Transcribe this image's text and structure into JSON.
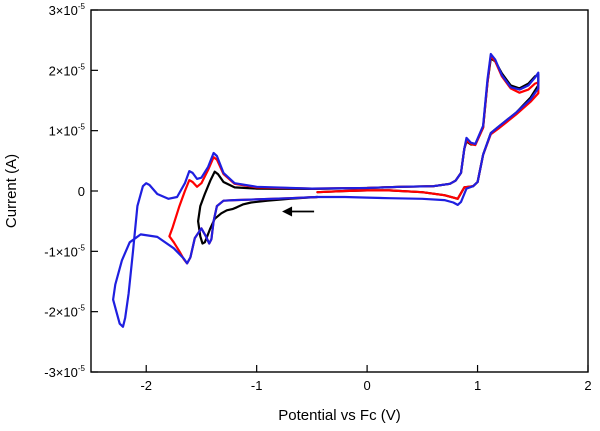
{
  "chart_data": {
    "type": "line",
    "title": "",
    "xlabel": "Potential vs Fc (V)",
    "ylabel": "Current (A)",
    "xlim": [
      -2.5,
      2.0
    ],
    "ylim": [
      -3e-05,
      3e-05
    ],
    "x_ticks": [
      {
        "value": -2,
        "label": "-2"
      },
      {
        "value": -1,
        "label": "-1"
      },
      {
        "value": 0,
        "label": "0"
      },
      {
        "value": 1,
        "label": "1"
      },
      {
        "value": 2,
        "label": "2"
      }
    ],
    "y_ticks": [
      {
        "value": 3e-05,
        "mant": "3×10",
        "exp": "-5"
      },
      {
        "value": 2e-05,
        "mant": "2×10",
        "exp": "-5"
      },
      {
        "value": 1e-05,
        "mant": "1×10",
        "exp": "-5"
      },
      {
        "value": 0,
        "mant": "0",
        "exp": ""
      },
      {
        "value": -1e-05,
        "mant": "-1×10",
        "exp": "-5"
      },
      {
        "value": -2e-05,
        "mant": "-2×10",
        "exp": "-5"
      },
      {
        "value": -3e-05,
        "mant": "-3×10",
        "exp": "-5"
      }
    ],
    "grid": false,
    "legend": "none",
    "annotation": {
      "type": "arrow",
      "direction": "left",
      "x_from": -0.48,
      "x_to": -0.77,
      "y": -3.4e-06
    },
    "series": [
      {
        "color": "#000000",
        "points": [
          [
            -0.45,
            -1e-06
          ],
          [
            -0.55,
            -1.1e-06
          ],
          [
            -0.7,
            -1.3e-06
          ],
          [
            -0.9,
            -1.6e-06
          ],
          [
            -1.05,
            -1.9e-06
          ],
          [
            -1.12,
            -2.2e-06
          ],
          [
            -1.18,
            -2.7e-06
          ],
          [
            -1.22,
            -3e-06
          ],
          [
            -1.27,
            -3.2e-06
          ],
          [
            -1.32,
            -3.7e-06
          ],
          [
            -1.38,
            -4.6e-06
          ],
          [
            -1.42,
            -6.2e-06
          ],
          [
            -1.45,
            -7.6e-06
          ],
          [
            -1.47,
            -8.5e-06
          ],
          [
            -1.49,
            -8.7e-06
          ],
          [
            -1.51,
            -7.5e-06
          ],
          [
            -1.53,
            -5e-06
          ],
          [
            -1.51,
            -2.5e-06
          ],
          [
            -1.47,
            -5e-07
          ],
          [
            -1.42,
            1.7e-06
          ],
          [
            -1.38,
            3.2e-06
          ],
          [
            -1.35,
            2.8e-06
          ],
          [
            -1.3,
            1.5e-06
          ],
          [
            -1.2,
            6e-07
          ],
          [
            -1.0,
            4e-07
          ],
          [
            -0.5,
            3.5e-07
          ],
          [
            0.0,
            5e-07
          ],
          [
            0.3,
            7e-07
          ],
          [
            0.6,
            8e-07
          ],
          [
            0.75,
            1.2e-06
          ],
          [
            0.8,
            1.7e-06
          ],
          [
            0.85,
            3e-06
          ],
          [
            0.88,
            7e-06
          ],
          [
            0.9,
            8.2e-06
          ],
          [
            0.94,
            7.7e-06
          ],
          [
            0.98,
            7.7e-06
          ],
          [
            1.05,
            1.05e-05
          ],
          [
            1.09,
            1.8e-05
          ],
          [
            1.12,
            2.2e-05
          ],
          [
            1.16,
            2.15e-05
          ],
          [
            1.22,
            1.95e-05
          ],
          [
            1.3,
            1.75e-05
          ],
          [
            1.38,
            1.7e-05
          ],
          [
            1.46,
            1.78e-05
          ],
          [
            1.52,
            1.9e-05
          ],
          [
            1.55,
            1.93e-05
          ],
          [
            1.55,
            1.75e-05
          ],
          [
            1.48,
            1.55e-05
          ],
          [
            1.35,
            1.3e-05
          ],
          [
            1.2,
            1.08e-05
          ],
          [
            1.12,
            9.6e-06
          ],
          [
            1.05,
            6e-06
          ],
          [
            1.0,
            1.5e-06
          ],
          [
            0.96,
            8e-07
          ],
          [
            0.88,
            6e-07
          ],
          [
            0.82,
            -1.3e-06
          ],
          [
            0.78,
            -1.1e-06
          ],
          [
            0.7,
            -7e-07
          ],
          [
            0.5,
            -2e-07
          ],
          [
            0.2,
            1e-07
          ],
          [
            0.0,
            1e-07
          ],
          [
            -0.2,
            0.0
          ],
          [
            -0.45,
            -2e-07
          ]
        ]
      },
      {
        "color": "#ff0000",
        "points": [
          [
            -0.45,
            -1e-06
          ],
          [
            -0.7,
            -1.2e-06
          ],
          [
            -1.0,
            -1.4e-06
          ],
          [
            -1.2,
            -1.5e-06
          ],
          [
            -1.3,
            -1.6e-06
          ],
          [
            -1.36,
            -2.5e-06
          ],
          [
            -1.39,
            -5e-06
          ],
          [
            -1.41,
            -8e-06
          ],
          [
            -1.43,
            -8.7e-06
          ],
          [
            -1.46,
            -7.5e-06
          ],
          [
            -1.5,
            -6.2e-06
          ],
          [
            -1.56,
            -7.8e-06
          ],
          [
            -1.6,
            -1.1e-05
          ],
          [
            -1.63,
            -1.2e-05
          ],
          [
            -1.66,
            -1.13e-05
          ],
          [
            -1.7,
            -1e-05
          ],
          [
            -1.75,
            -8.5e-06
          ],
          [
            -1.79,
            -7.5e-06
          ],
          [
            -1.76,
            -6e-06
          ],
          [
            -1.7,
            -2.5e-06
          ],
          [
            -1.65,
            0.0
          ],
          [
            -1.61,
            1.8e-06
          ],
          [
            -1.58,
            1.5e-06
          ],
          [
            -1.54,
            7e-07
          ],
          [
            -1.5,
            1.3e-06
          ],
          [
            -1.44,
            3.5e-06
          ],
          [
            -1.39,
            5.6e-06
          ],
          [
            -1.36,
            5.2e-06
          ],
          [
            -1.3,
            2.8e-06
          ],
          [
            -1.2,
            1.2e-06
          ],
          [
            -1.0,
            6e-07
          ],
          [
            -0.5,
            4e-07
          ],
          [
            0.0,
            5e-07
          ],
          [
            0.3,
            7e-07
          ],
          [
            0.6,
            8e-07
          ],
          [
            0.75,
            1.2e-06
          ],
          [
            0.8,
            1.7e-06
          ],
          [
            0.85,
            3e-06
          ],
          [
            0.88,
            7e-06
          ],
          [
            0.9,
            8.4e-06
          ],
          [
            0.94,
            7.8e-06
          ],
          [
            0.98,
            7.6e-06
          ],
          [
            1.05,
            1.05e-05
          ],
          [
            1.09,
            1.8e-05
          ],
          [
            1.12,
            2.24e-05
          ],
          [
            1.16,
            2.15e-05
          ],
          [
            1.22,
            1.9e-05
          ],
          [
            1.3,
            1.7e-05
          ],
          [
            1.38,
            1.63e-05
          ],
          [
            1.46,
            1.68e-05
          ],
          [
            1.52,
            1.78e-05
          ],
          [
            1.55,
            1.8e-05
          ],
          [
            1.55,
            1.62e-05
          ],
          [
            1.48,
            1.48e-05
          ],
          [
            1.35,
            1.27e-05
          ],
          [
            1.2,
            1.05e-05
          ],
          [
            1.12,
            9.4e-06
          ],
          [
            1.05,
            6e-06
          ],
          [
            1.0,
            1.5e-06
          ],
          [
            0.96,
            8e-07
          ],
          [
            0.88,
            6e-07
          ],
          [
            0.82,
            -1.3e-06
          ],
          [
            0.78,
            -1.1e-06
          ],
          [
            0.7,
            -7e-07
          ],
          [
            0.5,
            -2e-07
          ],
          [
            0.2,
            1e-07
          ],
          [
            0.0,
            1e-07
          ],
          [
            -0.2,
            0.0
          ],
          [
            -0.45,
            -2e-07
          ]
        ]
      },
      {
        "color": "#1f1fe0",
        "points": [
          [
            -0.45,
            -1e-06
          ],
          [
            -0.7,
            -1.2e-06
          ],
          [
            -1.0,
            -1.4e-06
          ],
          [
            -1.2,
            -1.5e-06
          ],
          [
            -1.3,
            -1.6e-06
          ],
          [
            -1.36,
            -2.5e-06
          ],
          [
            -1.39,
            -5e-06
          ],
          [
            -1.41,
            -8e-06
          ],
          [
            -1.43,
            -8.7e-06
          ],
          [
            -1.46,
            -7.5e-06
          ],
          [
            -1.5,
            -6.2e-06
          ],
          [
            -1.56,
            -7.8e-06
          ],
          [
            -1.6,
            -1.1e-05
          ],
          [
            -1.63,
            -1.2e-05
          ],
          [
            -1.66,
            -1.12e-05
          ],
          [
            -1.75,
            -9.5e-06
          ],
          [
            -1.9,
            -7.6e-06
          ],
          [
            -2.05,
            -7.2e-06
          ],
          [
            -2.15,
            -8.5e-06
          ],
          [
            -2.22,
            -1.15e-05
          ],
          [
            -2.28,
            -1.55e-05
          ],
          [
            -2.3,
            -1.8e-05
          ],
          [
            -2.27,
            -2e-05
          ],
          [
            -2.24,
            -2.2e-05
          ],
          [
            -2.21,
            -2.25e-05
          ],
          [
            -2.19,
            -2.1e-05
          ],
          [
            -2.16,
            -1.7e-05
          ],
          [
            -2.12,
            -1e-05
          ],
          [
            -2.08,
            -2.5e-06
          ],
          [
            -2.03,
            8e-07
          ],
          [
            -2.0,
            1.3e-06
          ],
          [
            -1.97,
            1e-06
          ],
          [
            -1.9,
            -5e-07
          ],
          [
            -1.8,
            -1.3e-06
          ],
          [
            -1.72,
            -1e-06
          ],
          [
            -1.65,
            1.3e-06
          ],
          [
            -1.61,
            3.3e-06
          ],
          [
            -1.58,
            3e-06
          ],
          [
            -1.54,
            2e-06
          ],
          [
            -1.5,
            2.2e-06
          ],
          [
            -1.44,
            4e-06
          ],
          [
            -1.39,
            6.3e-06
          ],
          [
            -1.36,
            5.8e-06
          ],
          [
            -1.3,
            3e-06
          ],
          [
            -1.2,
            1.3e-06
          ],
          [
            -1.0,
            7e-07
          ],
          [
            -0.5,
            4e-07
          ],
          [
            0.0,
            5e-07
          ],
          [
            0.3,
            7e-07
          ],
          [
            0.6,
            8e-07
          ],
          [
            0.75,
            1.2e-06
          ],
          [
            0.8,
            1.7e-06
          ],
          [
            0.85,
            3e-06
          ],
          [
            0.88,
            7e-06
          ],
          [
            0.9,
            8.8e-06
          ],
          [
            0.94,
            8e-06
          ],
          [
            0.98,
            7.8e-06
          ],
          [
            1.05,
            1.08e-05
          ],
          [
            1.09,
            1.85e-05
          ],
          [
            1.12,
            2.27e-05
          ],
          [
            1.16,
            2.18e-05
          ],
          [
            1.22,
            1.92e-05
          ],
          [
            1.3,
            1.72e-05
          ],
          [
            1.38,
            1.68e-05
          ],
          [
            1.46,
            1.75e-05
          ],
          [
            1.52,
            1.88e-05
          ],
          [
            1.55,
            1.96e-05
          ],
          [
            1.55,
            1.7e-05
          ],
          [
            1.48,
            1.52e-05
          ],
          [
            1.35,
            1.3e-05
          ],
          [
            1.2,
            1.08e-05
          ],
          [
            1.12,
            9.6e-06
          ],
          [
            1.05,
            6e-06
          ],
          [
            1.0,
            1.5e-06
          ],
          [
            0.96,
            8e-07
          ],
          [
            0.9,
            4e-07
          ],
          [
            0.85,
            -1.8e-06
          ],
          [
            0.82,
            -2.3e-06
          ],
          [
            0.78,
            -1.9e-06
          ],
          [
            0.7,
            -1.5e-06
          ],
          [
            0.5,
            -1.3e-06
          ],
          [
            0.2,
            -1.2e-06
          ],
          [
            0.0,
            -1.1e-06
          ],
          [
            -0.2,
            -1e-06
          ],
          [
            -0.45,
            -1e-06
          ]
        ]
      }
    ]
  }
}
